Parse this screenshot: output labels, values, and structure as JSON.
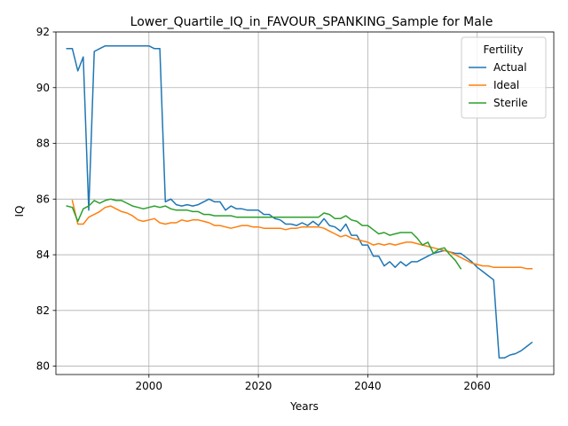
{
  "chart_data": {
    "type": "line",
    "title": "Lower_Quartile_IQ_in_FAVOUR_SPANKING_Sample for Male",
    "xlabel": "Years",
    "ylabel": "IQ",
    "xlim": [
      1983,
      2074
    ],
    "ylim": [
      79.7,
      92.0
    ],
    "xticks": [
      2000,
      2020,
      2040,
      2060
    ],
    "yticks": [
      80,
      82,
      84,
      86,
      88,
      90,
      92
    ],
    "grid": true,
    "legend": {
      "title": "Fertility",
      "position": "top-right"
    },
    "series": [
      {
        "name": "Actual",
        "color": "#1f77b4",
        "points": [
          [
            1985,
            91.4
          ],
          [
            1986,
            91.4
          ],
          [
            1987,
            90.6
          ],
          [
            1988,
            91.1
          ],
          [
            1989,
            85.6
          ],
          [
            1990,
            91.3
          ],
          [
            1991,
            91.4
          ],
          [
            1992,
            91.5
          ],
          [
            1993,
            91.5
          ],
          [
            1994,
            91.5
          ],
          [
            1995,
            91.5
          ],
          [
            1996,
            91.5
          ],
          [
            1997,
            91.5
          ],
          [
            1998,
            91.5
          ],
          [
            1999,
            91.5
          ],
          [
            2000,
            91.5
          ],
          [
            2001,
            91.4
          ],
          [
            2002,
            91.4
          ],
          [
            2003,
            85.9
          ],
          [
            2004,
            86.0
          ],
          [
            2005,
            85.8
          ],
          [
            2006,
            85.75
          ],
          [
            2007,
            85.8
          ],
          [
            2008,
            85.75
          ],
          [
            2009,
            85.8
          ],
          [
            2010,
            85.9
          ],
          [
            2011,
            86.0
          ],
          [
            2012,
            85.9
          ],
          [
            2013,
            85.9
          ],
          [
            2014,
            85.6
          ],
          [
            2015,
            85.75
          ],
          [
            2016,
            85.65
          ],
          [
            2017,
            85.65
          ],
          [
            2018,
            85.6
          ],
          [
            2019,
            85.6
          ],
          [
            2020,
            85.6
          ],
          [
            2021,
            85.45
          ],
          [
            2022,
            85.45
          ],
          [
            2023,
            85.3
          ],
          [
            2024,
            85.25
          ],
          [
            2025,
            85.1
          ],
          [
            2026,
            85.1
          ],
          [
            2027,
            85.05
          ],
          [
            2028,
            85.15
          ],
          [
            2029,
            85.05
          ],
          [
            2030,
            85.2
          ],
          [
            2031,
            85.05
          ],
          [
            2032,
            85.3
          ],
          [
            2033,
            85.05
          ],
          [
            2034,
            85.0
          ],
          [
            2035,
            84.85
          ],
          [
            2036,
            85.1
          ],
          [
            2037,
            84.7
          ],
          [
            2038,
            84.7
          ],
          [
            2039,
            84.35
          ],
          [
            2040,
            84.35
          ],
          [
            2041,
            83.95
          ],
          [
            2042,
            83.95
          ],
          [
            2043,
            83.6
          ],
          [
            2044,
            83.75
          ],
          [
            2045,
            83.55
          ],
          [
            2046,
            83.75
          ],
          [
            2047,
            83.6
          ],
          [
            2048,
            83.75
          ],
          [
            2049,
            83.75
          ],
          [
            2050,
            83.85
          ],
          [
            2051,
            83.95
          ],
          [
            2052,
            84.05
          ],
          [
            2053,
            84.1
          ],
          [
            2054,
            84.15
          ],
          [
            2055,
            84.1
          ],
          [
            2056,
            84.05
          ],
          [
            2057,
            84.05
          ],
          [
            2058,
            83.9
          ],
          [
            2059,
            83.75
          ],
          [
            2060,
            83.55
          ],
          [
            2061,
            83.4
          ],
          [
            2062,
            83.25
          ],
          [
            2063,
            83.1
          ],
          [
            2064,
            80.3
          ],
          [
            2065,
            80.3
          ],
          [
            2066,
            80.4
          ],
          [
            2067,
            80.45
          ],
          [
            2068,
            80.55
          ],
          [
            2069,
            80.7
          ],
          [
            2070,
            80.85
          ]
        ]
      },
      {
        "name": "Ideal",
        "color": "#ff7f0e",
        "points": [
          [
            1986,
            85.95
          ],
          [
            1987,
            85.1
          ],
          [
            1988,
            85.1
          ],
          [
            1989,
            85.35
          ],
          [
            1990,
            85.45
          ],
          [
            1991,
            85.55
          ],
          [
            1992,
            85.7
          ],
          [
            1993,
            85.75
          ],
          [
            1994,
            85.65
          ],
          [
            1995,
            85.55
          ],
          [
            1996,
            85.5
          ],
          [
            1997,
            85.4
          ],
          [
            1998,
            85.25
          ],
          [
            1999,
            85.2
          ],
          [
            2000,
            85.25
          ],
          [
            2001,
            85.3
          ],
          [
            2002,
            85.15
          ],
          [
            2003,
            85.1
          ],
          [
            2004,
            85.15
          ],
          [
            2005,
            85.15
          ],
          [
            2006,
            85.25
          ],
          [
            2007,
            85.2
          ],
          [
            2008,
            85.25
          ],
          [
            2009,
            85.25
          ],
          [
            2010,
            85.2
          ],
          [
            2011,
            85.15
          ],
          [
            2012,
            85.05
          ],
          [
            2013,
            85.05
          ],
          [
            2014,
            85.0
          ],
          [
            2015,
            84.95
          ],
          [
            2016,
            85.0
          ],
          [
            2017,
            85.05
          ],
          [
            2018,
            85.05
          ],
          [
            2019,
            85.0
          ],
          [
            2020,
            85.0
          ],
          [
            2021,
            84.95
          ],
          [
            2022,
            84.95
          ],
          [
            2023,
            84.95
          ],
          [
            2024,
            84.95
          ],
          [
            2025,
            84.9
          ],
          [
            2026,
            84.95
          ],
          [
            2027,
            84.95
          ],
          [
            2028,
            85.0
          ],
          [
            2029,
            85.0
          ],
          [
            2030,
            85.0
          ],
          [
            2031,
            85.0
          ],
          [
            2032,
            84.95
          ],
          [
            2033,
            84.85
          ],
          [
            2034,
            84.75
          ],
          [
            2035,
            84.65
          ],
          [
            2036,
            84.7
          ],
          [
            2037,
            84.6
          ],
          [
            2038,
            84.55
          ],
          [
            2039,
            84.5
          ],
          [
            2040,
            84.45
          ],
          [
            2041,
            84.35
          ],
          [
            2042,
            84.4
          ],
          [
            2043,
            84.35
          ],
          [
            2044,
            84.4
          ],
          [
            2045,
            84.35
          ],
          [
            2046,
            84.4
          ],
          [
            2047,
            84.45
          ],
          [
            2048,
            84.45
          ],
          [
            2049,
            84.4
          ],
          [
            2050,
            84.35
          ],
          [
            2051,
            84.3
          ],
          [
            2052,
            84.25
          ],
          [
            2053,
            84.2
          ],
          [
            2054,
            84.15
          ],
          [
            2055,
            84.1
          ],
          [
            2056,
            84.0
          ],
          [
            2057,
            83.9
          ],
          [
            2058,
            83.8
          ],
          [
            2059,
            83.7
          ],
          [
            2060,
            83.65
          ],
          [
            2061,
            83.6
          ],
          [
            2062,
            83.6
          ],
          [
            2063,
            83.55
          ],
          [
            2064,
            83.55
          ],
          [
            2065,
            83.55
          ],
          [
            2066,
            83.55
          ],
          [
            2067,
            83.55
          ],
          [
            2068,
            83.55
          ],
          [
            2069,
            83.5
          ],
          [
            2070,
            83.5
          ]
        ]
      },
      {
        "name": "Sterile",
        "color": "#2ca02c",
        "points": [
          [
            1985,
            85.75
          ],
          [
            1986,
            85.7
          ],
          [
            1987,
            85.2
          ],
          [
            1988,
            85.65
          ],
          [
            1989,
            85.75
          ],
          [
            1990,
            85.95
          ],
          [
            1991,
            85.85
          ],
          [
            1992,
            85.95
          ],
          [
            1993,
            86.0
          ],
          [
            1994,
            85.95
          ],
          [
            1995,
            85.95
          ],
          [
            1996,
            85.85
          ],
          [
            1997,
            85.75
          ],
          [
            1998,
            85.7
          ],
          [
            1999,
            85.65
          ],
          [
            2000,
            85.7
          ],
          [
            2001,
            85.75
          ],
          [
            2002,
            85.7
          ],
          [
            2003,
            85.75
          ],
          [
            2004,
            85.65
          ],
          [
            2005,
            85.6
          ],
          [
            2006,
            85.6
          ],
          [
            2007,
            85.6
          ],
          [
            2008,
            85.55
          ],
          [
            2009,
            85.55
          ],
          [
            2010,
            85.45
          ],
          [
            2011,
            85.45
          ],
          [
            2012,
            85.4
          ],
          [
            2013,
            85.4
          ],
          [
            2014,
            85.4
          ],
          [
            2015,
            85.4
          ],
          [
            2016,
            85.35
          ],
          [
            2017,
            85.35
          ],
          [
            2018,
            85.35
          ],
          [
            2019,
            85.35
          ],
          [
            2020,
            85.35
          ],
          [
            2021,
            85.35
          ],
          [
            2022,
            85.35
          ],
          [
            2023,
            85.35
          ],
          [
            2024,
            85.35
          ],
          [
            2025,
            85.35
          ],
          [
            2026,
            85.35
          ],
          [
            2027,
            85.35
          ],
          [
            2028,
            85.35
          ],
          [
            2029,
            85.35
          ],
          [
            2030,
            85.35
          ],
          [
            2031,
            85.35
          ],
          [
            2032,
            85.5
          ],
          [
            2033,
            85.45
          ],
          [
            2034,
            85.3
          ],
          [
            2035,
            85.3
          ],
          [
            2036,
            85.4
          ],
          [
            2037,
            85.25
          ],
          [
            2038,
            85.2
          ],
          [
            2039,
            85.05
          ],
          [
            2040,
            85.05
          ],
          [
            2041,
            84.9
          ],
          [
            2042,
            84.75
          ],
          [
            2043,
            84.8
          ],
          [
            2044,
            84.7
          ],
          [
            2045,
            84.75
          ],
          [
            2046,
            84.8
          ],
          [
            2047,
            84.8
          ],
          [
            2048,
            84.8
          ],
          [
            2049,
            84.6
          ],
          [
            2050,
            84.35
          ],
          [
            2051,
            84.45
          ],
          [
            2052,
            84.05
          ],
          [
            2053,
            84.2
          ],
          [
            2054,
            84.25
          ],
          [
            2055,
            84.0
          ],
          [
            2056,
            83.8
          ],
          [
            2057,
            83.5
          ]
        ]
      }
    ]
  }
}
